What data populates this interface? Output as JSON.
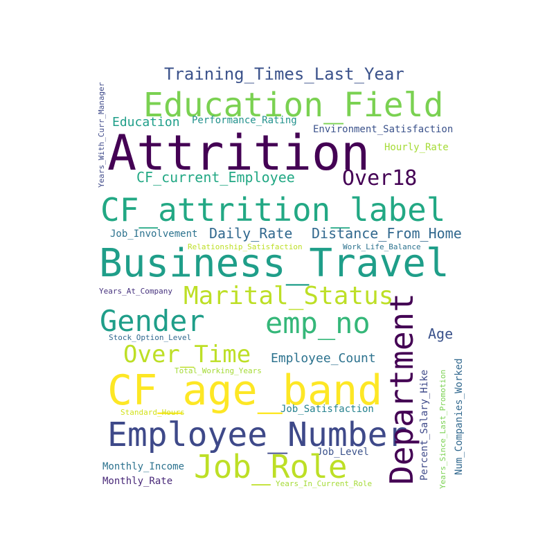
{
  "wordcloud": {
    "words": [
      {
        "id": "training",
        "text": "Training_Times_Last_Year",
        "color": "#3b528b"
      },
      {
        "id": "education_field",
        "text": "Education_Field",
        "color": "#7ad151"
      },
      {
        "id": "education",
        "text": "Education",
        "color": "#1f9e89"
      },
      {
        "id": "performance",
        "text": "Performance_Rating",
        "color": "#21918c"
      },
      {
        "id": "environment",
        "text": "Environment_Satisfaction",
        "color": "#3b528b"
      },
      {
        "id": "attrition",
        "text": "Attrition",
        "color": "#440154"
      },
      {
        "id": "hourly",
        "text": "Hourly_Rate",
        "color": "#a5db36"
      },
      {
        "id": "cf_current",
        "text": "CF_current_Employee",
        "color": "#22a884"
      },
      {
        "id": "over18",
        "text": "Over18",
        "color": "#440154"
      },
      {
        "id": "cf_attrition",
        "text": "CF_attrition_label",
        "color": "#22a884"
      },
      {
        "id": "job_involvement",
        "text": "Job_Involvement",
        "color": "#2c728e"
      },
      {
        "id": "daily_rate",
        "text": "Daily_Rate",
        "color": "#31688e"
      },
      {
        "id": "distance",
        "text": "Distance_From_Home",
        "color": "#31688e"
      },
      {
        "id": "relationship",
        "text": "Relationship_Satisfaction",
        "color": "#bddf26"
      },
      {
        "id": "work_life",
        "text": "Work_Life_Balance",
        "color": "#2c728e"
      },
      {
        "id": "business_travel",
        "text": "Business_Travel",
        "color": "#1f9e89"
      },
      {
        "id": "years_company",
        "text": "Years_At_Company",
        "color": "#46327e"
      },
      {
        "id": "marital",
        "text": "Marital_Status",
        "color": "#bddf26"
      },
      {
        "id": "gender",
        "text": "Gender",
        "color": "#1f9e89"
      },
      {
        "id": "emp_no",
        "text": "emp_no",
        "color": "#35b779"
      },
      {
        "id": "age",
        "text": "Age",
        "color": "#3b528b"
      },
      {
        "id": "stock",
        "text": "Stock_Option_Level",
        "color": "#31688e"
      },
      {
        "id": "over_time",
        "text": "Over_Time",
        "color": "#bddf26"
      },
      {
        "id": "employee_count",
        "text": "Employee_Count",
        "color": "#2c728e"
      },
      {
        "id": "total_working",
        "text": "Total_Working_Years",
        "color": "#a5db36"
      },
      {
        "id": "cf_age_band",
        "text": "CF_age_band",
        "color": "#fde725"
      },
      {
        "id": "job_satisfaction",
        "text": "Job_Satisfaction",
        "color": "#26828e"
      },
      {
        "id": "standard_hours",
        "text": "Standard_Hours",
        "color": "#d2e21b"
      },
      {
        "id": "employee_number",
        "text": "Employee_Number",
        "color": "#3e4989"
      },
      {
        "id": "job_level",
        "text": "Job_Level",
        "color": "#3b528b"
      },
      {
        "id": "monthly_income",
        "text": "Monthly_Income",
        "color": "#2c728e"
      },
      {
        "id": "job_role",
        "text": "Job_Role",
        "color": "#bddf26"
      },
      {
        "id": "monthly_rate",
        "text": "Monthly_Rate",
        "color": "#482878"
      },
      {
        "id": "years_current",
        "text": "Years_In_Current_Role",
        "color": "#a5db36"
      },
      {
        "id": "years_curr_mgr",
        "text": "Years_With_Curr_Manager",
        "color": "#3e4989"
      },
      {
        "id": "department",
        "text": "Department",
        "color": "#440154"
      },
      {
        "id": "percent_salary",
        "text": "Percent_Salary_Hike",
        "color": "#3e4989"
      },
      {
        "id": "years_since_promo",
        "text": "Years_Since_Last_Promotion",
        "color": "#7ad151"
      },
      {
        "id": "num_companies",
        "text": "Num_Companies_Worked",
        "color": "#31688e"
      }
    ]
  }
}
